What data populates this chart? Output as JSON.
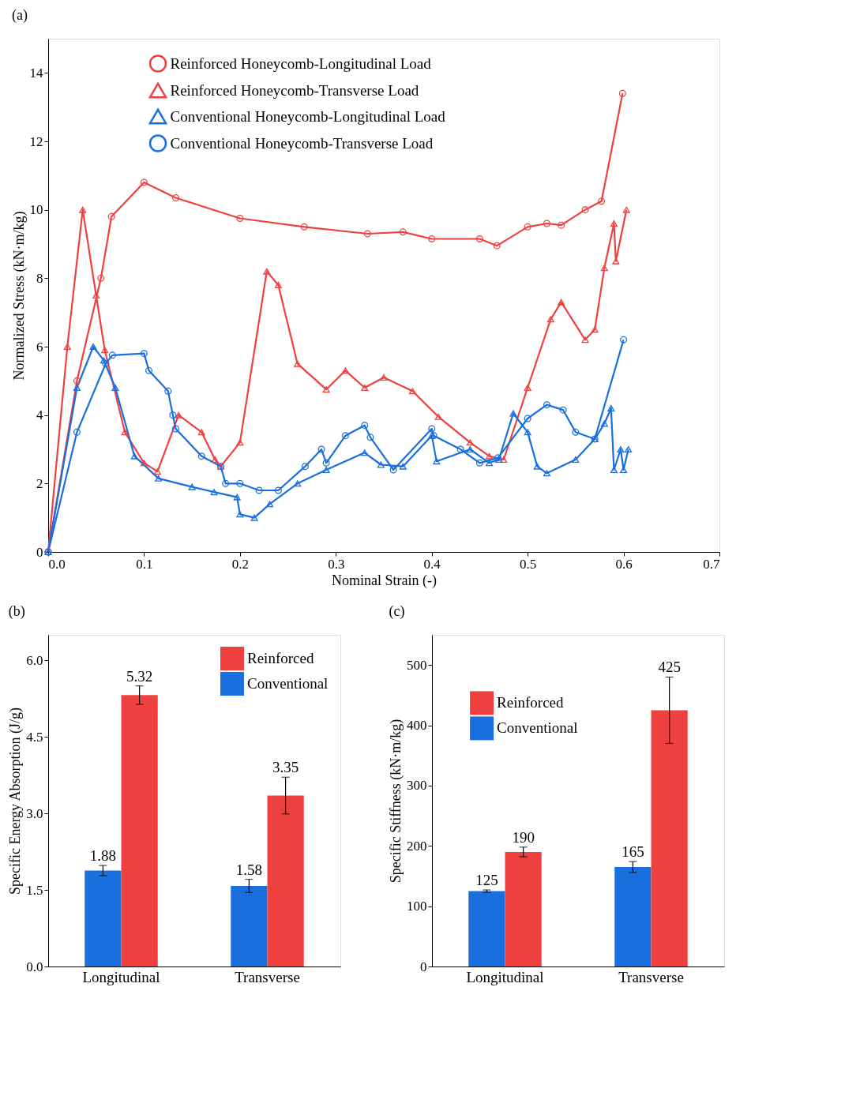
{
  "chart_data": [
    {
      "type": "line",
      "title": "(a)",
      "xlabel": "Nominal Strain (-)",
      "ylabel": "Normalized Stress (kN·m/kg)",
      "xlim": [
        0,
        0.7
      ],
      "ylim": [
        0,
        15
      ],
      "xticks": [
        {
          "value": 0,
          "label": "0.0"
        },
        0.1,
        0.2,
        0.3,
        0.4,
        0.5,
        0.6,
        0.7
      ],
      "yticks": [
        0,
        2,
        4,
        6,
        8,
        10,
        12,
        14
      ],
      "grid": false,
      "legend": "top",
      "line_style": "solid",
      "series": [
        {
          "name": "Reinforced Honeycomb-Longitudinal  Load",
          "color": "#ef4040",
          "marker": "circle",
          "x": [
            0,
            0.03,
            0.055,
            0.066,
            0.1,
            0.133,
            0.2,
            0.267,
            0.333,
            0.37,
            0.4,
            0.45,
            0.468,
            0.5,
            0.52,
            0.535,
            0.56,
            0.577,
            0.599
          ],
          "values": [
            0,
            5,
            8,
            9.8,
            10.8,
            10.35,
            9.75,
            9.5,
            9.3,
            9.35,
            9.15,
            9.15,
            8.95,
            9.5,
            9.6,
            9.55,
            10.0,
            10.25,
            13.4
          ]
        },
        {
          "name": "Reinforced Honeycomb-Transverse Load",
          "color": "#ef4040",
          "marker": "triangle",
          "x": [
            0,
            0.02,
            0.036,
            0.05,
            0.059,
            0.08,
            0.1,
            0.114,
            0.136,
            0.16,
            0.174,
            0.18,
            0.2,
            0.228,
            0.24,
            0.26,
            0.29,
            0.31,
            0.33,
            0.35,
            0.38,
            0.407,
            0.44,
            0.46,
            0.475,
            0.5,
            0.524,
            0.535,
            0.56,
            0.57,
            0.58,
            0.59,
            0.592,
            0.603
          ],
          "values": [
            0,
            6,
            10,
            7.5,
            5.9,
            3.5,
            2.6,
            2.35,
            4,
            3.5,
            2.7,
            2.5,
            3.2,
            8.2,
            7.8,
            5.5,
            4.75,
            5.3,
            4.8,
            5.1,
            4.7,
            3.95,
            3.2,
            2.8,
            2.7,
            4.8,
            6.8,
            7.3,
            6.2,
            6.5,
            8.3,
            9.6,
            8.5,
            10
          ]
        },
        {
          "name": " Conventional Honeycomb-Longitudinal  Load",
          "color": "#1a6fdf",
          "marker": "triangle",
          "x": [
            0,
            0.03,
            0.047,
            0.058,
            0.07,
            0.09,
            0.115,
            0.15,
            0.173,
            0.197,
            0.2,
            0.215,
            0.231,
            0.26,
            0.29,
            0.33,
            0.347,
            0.37,
            0.4,
            0.405,
            0.44,
            0.46,
            0.47,
            0.485,
            0.5,
            0.51,
            0.52,
            0.55,
            0.57,
            0.58,
            0.587,
            0.59,
            0.597,
            0.6,
            0.605
          ],
          "values": [
            0,
            4.8,
            6,
            5.6,
            4.8,
            2.8,
            2.15,
            1.9,
            1.75,
            1.6,
            1.1,
            1,
            1.4,
            2,
            2.4,
            2.9,
            2.55,
            2.5,
            3.4,
            2.65,
            3,
            2.6,
            2.7,
            4.05,
            3.5,
            2.5,
            2.3,
            2.7,
            3.3,
            3.75,
            4.2,
            2.4,
            3,
            2.4,
            3
          ]
        },
        {
          "name": "Conventional Honeycomb-Transverse Load",
          "color": "#1a6fdf",
          "marker": "circle",
          "x": [
            0,
            0.03,
            0.06,
            0.067,
            0.1,
            0.105,
            0.125,
            0.13,
            0.133,
            0.16,
            0.18,
            0.185,
            0.2,
            0.22,
            0.24,
            0.268,
            0.285,
            0.29,
            0.31,
            0.33,
            0.336,
            0.36,
            0.4,
            0.402,
            0.43,
            0.45,
            0.469,
            0.5,
            0.52,
            0.537,
            0.55,
            0.57,
            0.6
          ],
          "values": [
            0,
            3.5,
            5.5,
            5.75,
            5.8,
            5.3,
            4.7,
            4,
            3.6,
            2.8,
            2.5,
            2,
            2,
            1.8,
            1.8,
            2.5,
            3,
            2.6,
            3.4,
            3.7,
            3.35,
            2.4,
            3.6,
            3.4,
            3,
            2.6,
            2.75,
            3.9,
            4.3,
            4.15,
            3.5,
            3.3,
            6.2
          ]
        }
      ]
    },
    {
      "type": "bar",
      "title": "(b)",
      "ylabel": "Specific Energy Absorption (J/g)",
      "categories": [
        "Longitudinal",
        "Transverse"
      ],
      "ylim": [
        0,
        6.5
      ],
      "yticks": [
        {
          "value": 0,
          "label": "0.0"
        },
        1.5,
        {
          "value": 3,
          "label": "3.0"
        },
        4.5,
        {
          "value": 6,
          "label": "6.0"
        }
      ],
      "grid": false,
      "legend": "top right",
      "data_labels": true,
      "series": [
        {
          "name": "Conventional",
          "color": "#1a6fdf",
          "values": [
            1.88,
            1.58
          ],
          "errors": [
            0.1,
            0.13
          ]
        },
        {
          "name": "Reinforced",
          "color": "#ef4040",
          "values": [
            5.32,
            3.35
          ],
          "errors": [
            0.18,
            0.36
          ]
        }
      ]
    },
    {
      "type": "bar",
      "title": "(c)",
      "ylabel": "Specific Stiffness (kN·m/kg)",
      "categories": [
        "Longitudinal",
        "Transverse"
      ],
      "ylim": [
        0,
        550
      ],
      "yticks": [
        0,
        100,
        200,
        300,
        400,
        500
      ],
      "grid": false,
      "legend": "top left",
      "data_labels": true,
      "series": [
        {
          "name": "Conventional",
          "color": "#1a6fdf",
          "values": [
            125,
            165
          ],
          "errors": [
            2,
            9
          ]
        },
        {
          "name": "Reinforced",
          "color": "#ef4040",
          "values": [
            190,
            425
          ],
          "errors": [
            8,
            55
          ]
        }
      ]
    }
  ]
}
